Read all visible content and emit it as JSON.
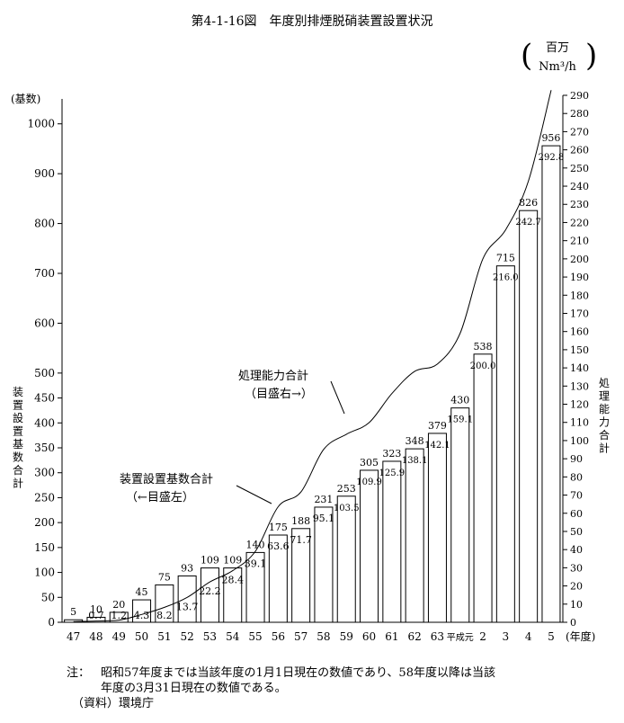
{
  "chart_data": {
    "type": "bar",
    "title": "第4-1-16図　年度別排煙脱硝装置設置状況",
    "categories": [
      "47",
      "48",
      "49",
      "50",
      "51",
      "52",
      "53",
      "54",
      "55",
      "56",
      "57",
      "58",
      "59",
      "60",
      "61",
      "62",
      "63",
      "平成元",
      "2",
      "3",
      "4",
      "5"
    ],
    "x_unit": "(年度)",
    "series": [
      {
        "name": "装置設置基数合計",
        "type": "bar",
        "axis": "left",
        "values": [
          5,
          10,
          20,
          45,
          75,
          93,
          109,
          109,
          140,
          175,
          188,
          231,
          253,
          305,
          323,
          348,
          379,
          430,
          538,
          715,
          826,
          956
        ]
      },
      {
        "name": "処理能力合計",
        "type": "line",
        "axis": "right",
        "values": [
          0.4,
          0.7,
          1.2,
          4.3,
          8.2,
          13.7,
          22.2,
          28.4,
          39.1,
          63.6,
          71.7,
          95.1,
          103.5,
          109.9,
          125.9,
          138.1,
          142.1,
          159.1,
          200.0,
          216.0,
          242.7,
          292.8
        ],
        "labels": [
          "",
          "0.7",
          "1.2",
          "4.3",
          "8.2",
          "13.7",
          "22.2",
          "28.4",
          "39.1",
          "63.6",
          "71.7",
          "95.1",
          "103.5",
          "109.9",
          "125.9",
          "138.1",
          "142.1",
          "159.1",
          "200.0",
          "216.0",
          "242.7",
          "292.8"
        ]
      }
    ],
    "left_axis": {
      "unit": "(基数)",
      "label": "装置設置基数合計",
      "ylim": [
        0,
        1050
      ],
      "ticks": [
        0,
        50,
        100,
        150,
        200,
        250,
        300,
        350,
        400,
        450,
        500,
        600,
        700,
        800,
        900,
        1000
      ]
    },
    "right_axis": {
      "unit_line1": "百万",
      "unit_line2": "Nm³/h",
      "label": "処理能力合計",
      "ylim": [
        0,
        290
      ],
      "tick_step": 10
    },
    "annotations": [
      {
        "line1": "処理能力合計",
        "line2": "（目盛右→）"
      },
      {
        "line1": "装置設置基数合計",
        "line2": "（←目盛左）"
      }
    ]
  },
  "notes": {
    "note_prefix": "注：",
    "note_line1": "昭和57年度までは当該年度の1月1日現在の数値であり、58年度以降は当該",
    "note_line2": "年度の3月31日現在の数値である。",
    "source": "（資料）環境庁"
  }
}
